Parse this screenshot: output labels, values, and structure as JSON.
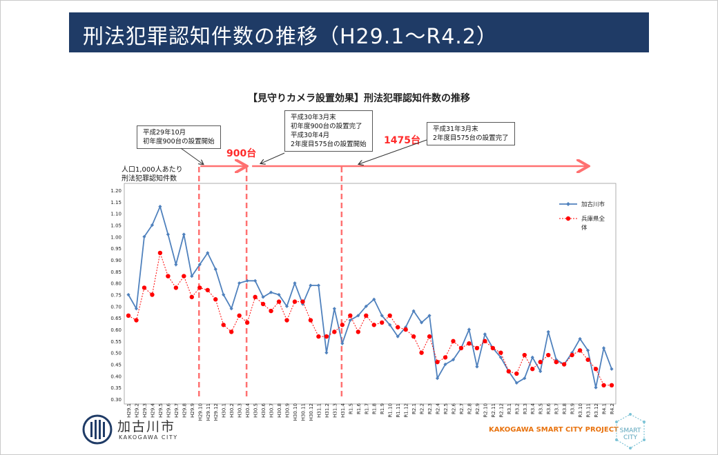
{
  "header": {
    "title": "刑法犯罪認知件数の推移（H29.1～R4.2）"
  },
  "chart_title": "【見守りカメラ設置効果】刑法犯罪認知件数の推移",
  "notes": [
    "平成29年10月\n初年度900台の設置開始",
    "平成30年3月末\n初年度900台の設置完了\n平成30年4月\n2年度目575台の設置開始",
    "平成31年3月末\n2年度目575台の設置完了"
  ],
  "counts": {
    "c900": "900台",
    "c1475": "1475台"
  },
  "y_axis_label": "人口1,000人あたり\n刑法犯罪認知件数",
  "brand": {
    "city_name": "加古川市",
    "city_sub": "KAKOGAWA CITY",
    "project": "KAKOGAWA SMART CITY PROJECT",
    "smart_city": "SMART\nCITY"
  },
  "colors": {
    "kakogawa": "#4f81bd",
    "hyogo": "#ff0000",
    "annotation": "#ff7070"
  },
  "chart_data": {
    "type": "line",
    "ylim": [
      0.3,
      1.2
    ],
    "yticks": [
      "0.30",
      "0.35",
      "0.40",
      "0.45",
      "0.50",
      "0.55",
      "0.60",
      "0.65",
      "0.70",
      "0.75",
      "0.80",
      "0.85",
      "0.90",
      "0.95",
      "1.00",
      "1.05",
      "1.10",
      "1.15",
      "1.20"
    ],
    "categories": [
      "H29.1",
      "H29.2",
      "H29.3",
      "H29.4",
      "H29.5",
      "H29.6",
      "H29.7",
      "H29.8",
      "H29.9",
      "H29.10",
      "H29.11",
      "H29.12",
      "H30.1",
      "H30.2",
      "H30.3",
      "H30.4",
      "H30.5",
      "H30.6",
      "H30.7",
      "H30.8",
      "H30.9",
      "H30.10",
      "H30.11",
      "H30.12",
      "H31.1",
      "H31.2",
      "H31.3",
      "H31.4",
      "R1.5",
      "R1.6",
      "R1.7",
      "R1.8",
      "R1.9",
      "R1.10",
      "R1.11",
      "R1.12",
      "R2.1",
      "R2.2",
      "R2.3",
      "R2.4",
      "R2.5",
      "R2.6",
      "R2.7",
      "R2.8",
      "R2.9",
      "R2.10",
      "R2.11",
      "R2.12",
      "R3.1",
      "R3.2",
      "R3.3",
      "R3.4",
      "R3.5",
      "R3.6",
      "R3.7",
      "R3.8",
      "R3.9",
      "R3.10",
      "R3.11",
      "R3.12",
      "R4.1",
      "R4.2"
    ],
    "series": [
      {
        "name": "加古川市",
        "style": "solid",
        "values": [
          0.75,
          0.69,
          1.0,
          1.05,
          1.13,
          1.01,
          0.88,
          1.01,
          0.83,
          0.88,
          0.93,
          0.86,
          0.75,
          0.69,
          0.8,
          0.81,
          0.81,
          0.74,
          0.76,
          0.75,
          0.7,
          0.8,
          0.71,
          0.79,
          0.79,
          0.5,
          0.69,
          0.54,
          0.64,
          0.66,
          0.7,
          0.73,
          0.66,
          0.62,
          0.57,
          0.61,
          0.68,
          0.63,
          0.66,
          0.39,
          0.45,
          0.47,
          0.52,
          0.6,
          0.44,
          0.58,
          0.52,
          0.48,
          0.42,
          0.37,
          0.39,
          0.48,
          0.42,
          0.59,
          0.47,
          0.45,
          0.5,
          0.56,
          0.51,
          0.35,
          0.52,
          0.43
        ]
      },
      {
        "name": "兵庫県全体",
        "style": "dotted",
        "values": [
          0.66,
          0.64,
          0.78,
          0.75,
          0.93,
          0.83,
          0.78,
          0.83,
          0.74,
          0.78,
          0.77,
          0.73,
          0.62,
          0.59,
          0.66,
          0.63,
          0.74,
          0.71,
          0.68,
          0.72,
          0.64,
          0.72,
          0.72,
          0.64,
          0.57,
          0.57,
          0.59,
          0.62,
          0.66,
          0.59,
          0.66,
          0.62,
          0.63,
          0.66,
          0.61,
          0.6,
          0.57,
          0.5,
          0.57,
          0.46,
          0.48,
          0.55,
          0.52,
          0.54,
          0.52,
          0.55,
          0.52,
          0.5,
          0.42,
          0.41,
          0.49,
          0.43,
          0.46,
          0.49,
          0.46,
          0.45,
          0.49,
          0.51,
          0.47,
          0.43,
          0.36,
          0.36
        ]
      }
    ],
    "legend": "right",
    "grid": false
  }
}
